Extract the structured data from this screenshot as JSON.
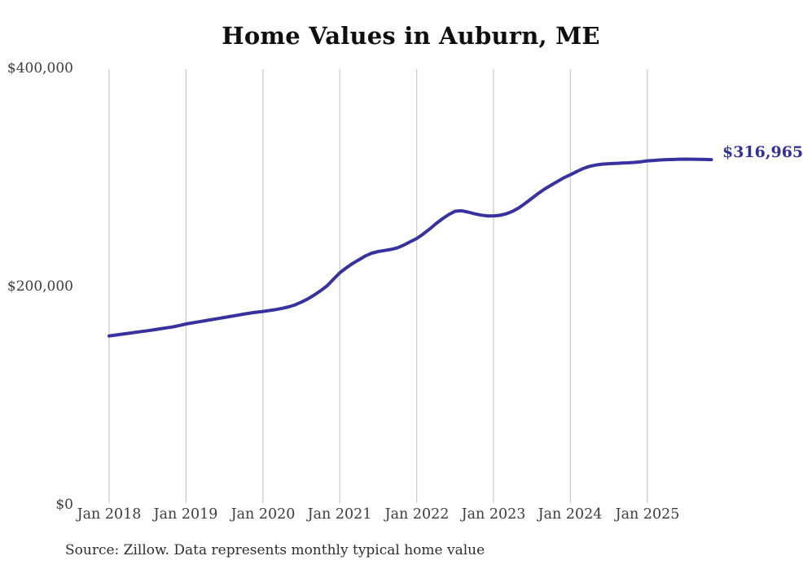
{
  "title": "Home Values in Auburn, ME",
  "annotation": {
    "end_value_label": "$316,965"
  },
  "footer": {
    "source_text": "Source: Zillow. Data represents monthly typical home value"
  },
  "colors": {
    "line": "#3732a0",
    "end_label": "#34309b",
    "grid": "#cccccc",
    "tick_text": "#3d3d3d",
    "title_text": "#0f0f0f",
    "source_text": "#2e2e2e",
    "background": "#ffffff"
  },
  "chart_data": {
    "type": "line",
    "title": "Home Values in Auburn, ME",
    "xlabel": "",
    "ylabel": "",
    "x_tick_labels": [
      "Jan 2018",
      "Jan 2019",
      "Jan 2020",
      "Jan 2021",
      "Jan 2022",
      "Jan 2023",
      "Jan 2024",
      "Jan 2025"
    ],
    "y_tick_labels": [
      "$0",
      "$200,000",
      "$400,000"
    ],
    "y_tick_values": [
      0,
      200000,
      400000
    ],
    "ylim": [
      0,
      400000
    ],
    "grid": "vertical-only",
    "legend": "none",
    "series": [
      {
        "name": "Monthly typical home value",
        "frequency": "monthly",
        "start_month": "2018-01",
        "end_month": "2025-11",
        "final_value": 316965,
        "values": [
          155000,
          155800,
          156600,
          157400,
          158200,
          159000,
          159800,
          160700,
          161600,
          162500,
          163400,
          164600,
          166000,
          167000,
          168000,
          169000,
          170000,
          171000,
          172000,
          173000,
          174000,
          175000,
          176000,
          176800,
          177500,
          178300,
          179200,
          180300,
          181700,
          183500,
          186000,
          189000,
          192500,
          196500,
          201000,
          207000,
          213000,
          217500,
          221500,
          225000,
          228500,
          231000,
          232500,
          233500,
          234500,
          236000,
          238500,
          241500,
          244500,
          248500,
          253000,
          258000,
          262500,
          266500,
          269500,
          270000,
          268800,
          267200,
          266000,
          265300,
          265200,
          265800,
          267200,
          269500,
          272800,
          277000,
          281500,
          286000,
          290000,
          293500,
          297000,
          300300,
          303000,
          306000,
          308800,
          310800,
          312000,
          312800,
          313200,
          313500,
          313800,
          314000,
          314400,
          315000,
          315800,
          316200,
          316600,
          316900,
          317100,
          317300,
          317400,
          317300,
          317200,
          317100,
          316965
        ]
      }
    ]
  }
}
